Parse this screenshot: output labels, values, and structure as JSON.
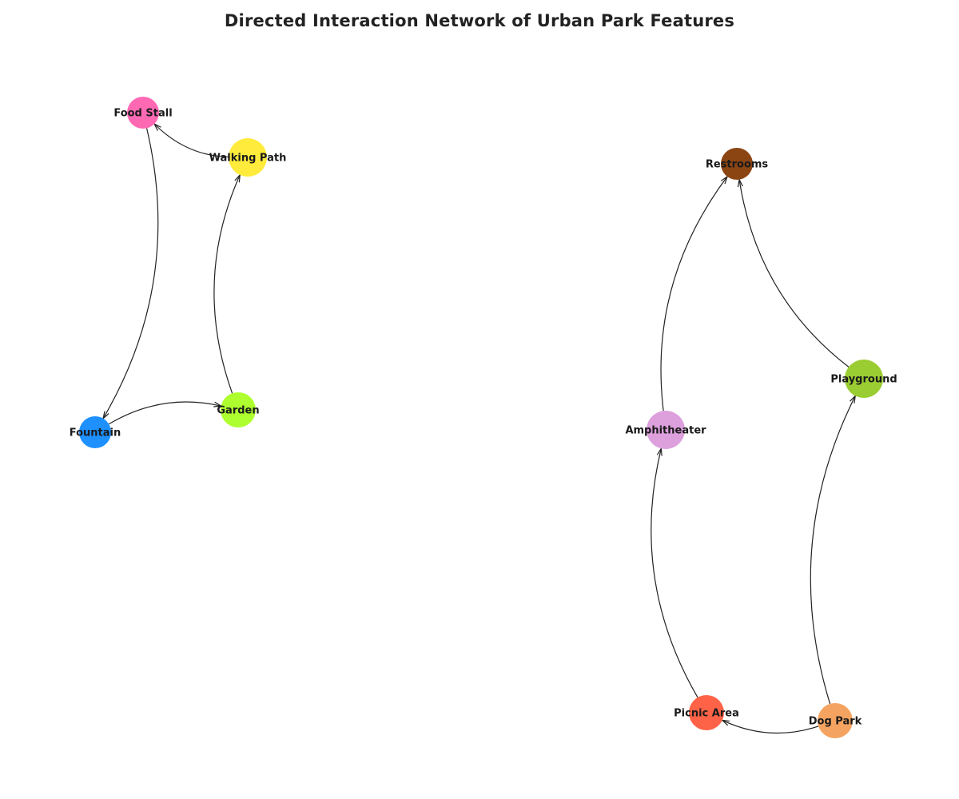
{
  "title": "Directed Interaction Network of Urban Park Features",
  "nodes": [
    {
      "id": "food_stall",
      "label": "Food Stall",
      "color": "#FF69B4",
      "size": "small"
    },
    {
      "id": "walking_path",
      "label": "Walking Path",
      "color": "#FFEB3B",
      "size": "large"
    },
    {
      "id": "garden",
      "label": "Garden",
      "color": "#ADFF2F",
      "size": "medium"
    },
    {
      "id": "fountain",
      "label": "Fountain",
      "color": "#1E90FF",
      "size": "small"
    },
    {
      "id": "restrooms",
      "label": "Restrooms",
      "color": "#8B4513",
      "size": "small"
    },
    {
      "id": "playground",
      "label": "Playground",
      "color": "#9ACD32",
      "size": "large"
    },
    {
      "id": "amphitheater",
      "label": "Amphitheater",
      "color": "#DDA0DD",
      "size": "large"
    },
    {
      "id": "picnic_area",
      "label": "Picnic Area",
      "color": "#FF6347",
      "size": "medium"
    },
    {
      "id": "dog_park",
      "label": "Dog Park",
      "color": "#F4A460",
      "size": "medium"
    }
  ],
  "edges": [
    {
      "source": "walking_path",
      "target": "food_stall"
    },
    {
      "source": "food_stall",
      "target": "fountain"
    },
    {
      "source": "garden",
      "target": "walking_path"
    },
    {
      "source": "fountain",
      "target": "garden"
    },
    {
      "source": "amphitheater",
      "target": "restrooms"
    },
    {
      "source": "playground",
      "target": "restrooms"
    },
    {
      "source": "picnic_area",
      "target": "amphitheater"
    },
    {
      "source": "dog_park",
      "target": "playground"
    },
    {
      "source": "dog_park",
      "target": "picnic_area"
    }
  ]
}
